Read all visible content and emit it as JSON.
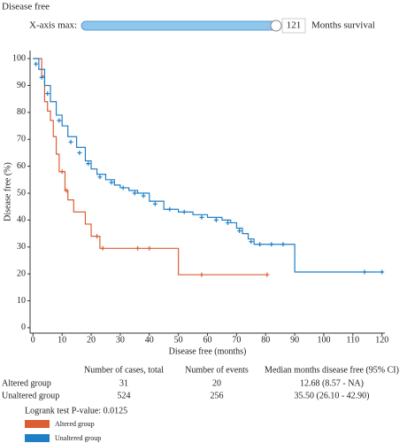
{
  "header": {
    "title": "Disease free"
  },
  "slider": {
    "label": "X-axis max:",
    "value": 121,
    "unit": "Months survival"
  },
  "chart_data": {
    "type": "step",
    "xlabel": "Disease free (months)",
    "ylabel": "Disease free (%)",
    "xlim": [
      -1,
      121
    ],
    "ylim": [
      -2,
      103
    ],
    "xticks": [
      0,
      10,
      20,
      30,
      40,
      50,
      60,
      70,
      80,
      90,
      100,
      110,
      120
    ],
    "yticks": [
      0,
      10,
      20,
      30,
      40,
      50,
      60,
      70,
      80,
      90,
      100
    ],
    "series": [
      {
        "name": "Altered group",
        "color": "#dc5f33",
        "x": [
          0,
          3,
          4,
          5,
          6,
          7,
          8,
          9,
          11,
          12,
          14,
          18,
          20,
          23,
          50,
          80.5
        ],
        "values": [
          100,
          93.5,
          84,
          80.5,
          77,
          71,
          64.5,
          58,
          51,
          47.5,
          43,
          38.5,
          34,
          29.5,
          19.7,
          19.7
        ],
        "censored_x": [
          10,
          11.5,
          22,
          24,
          36,
          40,
          58,
          80.5
        ],
        "censored_values": [
          58,
          51,
          34,
          29.5,
          29.5,
          29.5,
          19.7,
          19.7
        ]
      },
      {
        "name": "Unaltered group",
        "color": "#1f7fc6",
        "x": [
          0,
          2,
          4,
          6,
          8,
          10,
          12,
          15,
          18,
          20,
          22,
          25,
          28,
          30,
          33,
          36,
          40,
          45,
          50,
          55,
          60,
          65,
          68,
          70,
          72,
          74,
          76,
          80,
          85,
          90,
          120
        ],
        "values": [
          100,
          96,
          90,
          84,
          79,
          75,
          71,
          67,
          62,
          59,
          57,
          55,
          53,
          52,
          51,
          50,
          47,
          44,
          43,
          42,
          41,
          40,
          39,
          37,
          35,
          33,
          31,
          31,
          31,
          20.7,
          20.7
        ],
        "censored_x": [
          1,
          3,
          5,
          9,
          13,
          16,
          19,
          23,
          27,
          31,
          35,
          38,
          42,
          47,
          52,
          58,
          63,
          67,
          71,
          75,
          78,
          82,
          86,
          114,
          120
        ],
        "censored_values": [
          98,
          93,
          87,
          77,
          69,
          65,
          61,
          56,
          54,
          52,
          50,
          49,
          46,
          44,
          43,
          41,
          40,
          39,
          36,
          32,
          31,
          31,
          31,
          20.7,
          20.7
        ]
      }
    ]
  },
  "table": {
    "header": [
      "Number of cases, total",
      "Number of events",
      "Median months disease free (95% CI)"
    ],
    "rows": [
      [
        "Altered group",
        "31",
        "20",
        "12.68 (8.57 - NA)"
      ],
      [
        "Unaltered group",
        "524",
        "256",
        "35.50 (26.10 - 42.90)"
      ]
    ]
  },
  "logrank": "Logrank test P-value: 0.0125"
}
